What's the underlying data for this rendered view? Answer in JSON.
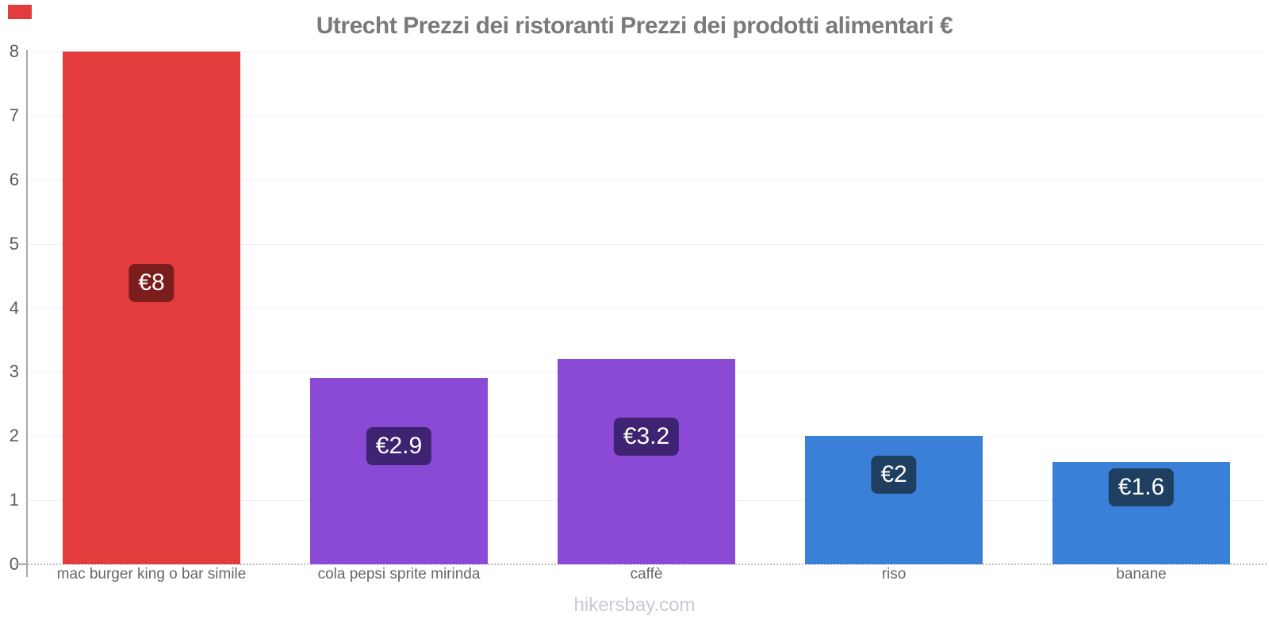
{
  "page": {
    "footer": "hikersbay.com",
    "corner_marker_color": "#e23c3c",
    "background_color": "#ffffff"
  },
  "chart_data": {
    "type": "bar",
    "title": "Utrecht Prezzi dei ristoranti Prezzi dei prodotti alimentari €",
    "categories": [
      "mac burger king o bar simile",
      "cola pepsi sprite mirinda",
      "caffè",
      "riso",
      "banane"
    ],
    "values": [
      8,
      2.9,
      3.2,
      2,
      1.6
    ],
    "bars": [
      {
        "category": "mac burger king o bar simile",
        "value": 8,
        "value_label": "€8",
        "bar_color": "#e23c3c",
        "badge_color": "#7b1d1d"
      },
      {
        "category": "cola pepsi sprite mirinda",
        "value": 2.9,
        "value_label": "€2.9",
        "bar_color": "#8a4ad6",
        "badge_color": "#3d2371"
      },
      {
        "category": "caffè",
        "value": 3.2,
        "value_label": "€3.2",
        "bar_color": "#8a4ad6",
        "badge_color": "#3d2371"
      },
      {
        "category": "riso",
        "value": 2,
        "value_label": "€2",
        "bar_color": "#3a80d8",
        "badge_color": "#1e3f5f"
      },
      {
        "category": "banane",
        "value": 1.6,
        "value_label": "€1.6",
        "bar_color": "#3a80d8",
        "badge_color": "#1e3f5f"
      }
    ],
    "xlabel": "",
    "ylabel": "",
    "ylim": [
      0,
      8
    ],
    "yticks": [
      0,
      1,
      2,
      3,
      4,
      5,
      6,
      7,
      8
    ],
    "grid": true,
    "legend": false,
    "axis_color": "#a8a8ad",
    "gridline_color": "#f1f1f6",
    "title_color": "#7a7a7a",
    "tick_label_color": "#5b5b5b",
    "category_label_color": "#666666"
  }
}
